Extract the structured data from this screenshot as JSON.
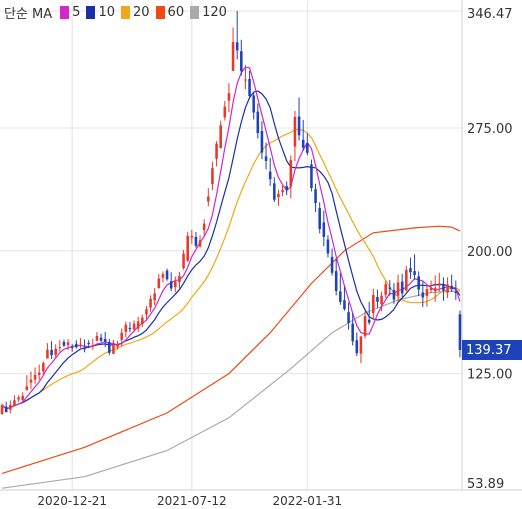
{
  "legend": {
    "prefix": "단순 MA",
    "items": [
      {
        "label": "5",
        "color": "#d426c9"
      },
      {
        "label": "10",
        "color": "#1a2fa8"
      },
      {
        "label": "20",
        "color": "#f0a81a"
      },
      {
        "label": "60",
        "color": "#f04a13"
      },
      {
        "label": "120",
        "color": "#aaaaaa"
      }
    ]
  },
  "colors": {
    "up": "#e8382a",
    "down": "#1e43b8",
    "last_price_tag": "#1e43b8",
    "grid": "#e4e4e4"
  },
  "last_price": {
    "value": "139.37"
  },
  "chart_data": {
    "type": "candlestick",
    "yscale": "linear",
    "ylim": [
      53.89,
      346.47
    ],
    "y_ticks": [
      {
        "label": "346.47",
        "value": 346.47
      },
      {
        "label": "275.00",
        "value": 275.0
      },
      {
        "label": "200.00",
        "value": 200.0
      },
      {
        "label": "125.00",
        "value": 125.0
      },
      {
        "label": "53.89",
        "value": 53.89
      }
    ],
    "x_ticks": [
      {
        "label": "2020-12-21",
        "index": 17
      },
      {
        "label": "2021-07-12",
        "index": 46
      },
      {
        "label": "2022-01-31",
        "index": 74
      }
    ],
    "grid": true,
    "n_periods": 112,
    "candles": [
      [
        100.2,
        106.8,
        99.9,
        105.7
      ],
      [
        104.8,
        107.8,
        101.4,
        101.4
      ],
      [
        103.0,
        108.6,
        100.7,
        105.8
      ],
      [
        105.5,
        111.7,
        105.0,
        108.7
      ],
      [
        109.2,
        111.8,
        107.6,
        110.5
      ],
      [
        108.9,
        113.6,
        107.3,
        111.4
      ],
      [
        114.8,
        124.0,
        114.8,
        117.2
      ],
      [
        119.5,
        126.3,
        115.5,
        121.3
      ],
      [
        121.4,
        128.7,
        118.7,
        124.1
      ],
      [
        124.2,
        130.5,
        121.1,
        125.6
      ],
      [
        126.3,
        132.4,
        124.0,
        131.5
      ],
      [
        134.2,
        143.6,
        134.2,
        139.5
      ],
      [
        139.5,
        144.8,
        133.9,
        136.2
      ],
      [
        136.4,
        142.9,
        134.0,
        140.2
      ],
      [
        140.6,
        145.4,
        138.4,
        141.2
      ],
      [
        144.3,
        145.7,
        141.4,
        142.0
      ],
      [
        142.4,
        146.2,
        139.4,
        144.1
      ],
      [
        141.2,
        143.0,
        138.3,
        140.8
      ],
      [
        143.2,
        145.4,
        140.3,
        141.1
      ],
      [
        142.5,
        146.7,
        140.7,
        142.7
      ],
      [
        140.4,
        145.8,
        138.0,
        139.8
      ],
      [
        143.7,
        145.4,
        140.5,
        143.1
      ],
      [
        141.4,
        146.3,
        139.5,
        142.2
      ],
      [
        145.1,
        150.4,
        144.6,
        148.0
      ],
      [
        147.0,
        149.4,
        144.4,
        145.0
      ],
      [
        146.2,
        150.4,
        141.2,
        144.3
      ],
      [
        144.3,
        146.1,
        136.2,
        137.7
      ],
      [
        137.1,
        145.6,
        136.9,
        142.5
      ],
      [
        141.3,
        145.1,
        139.7,
        142.6
      ],
      [
        145.6,
        152.5,
        141.8,
        149.9
      ],
      [
        150.5,
        156.7,
        147.2,
        154.8
      ],
      [
        152.9,
        156.5,
        150.3,
        152.1
      ],
      [
        152.0,
        157.5,
        150.2,
        155.5
      ],
      [
        152.5,
        159.6,
        150.3,
        156.9
      ],
      [
        155.2,
        161.0,
        153.3,
        159.2
      ],
      [
        161.1,
        166.3,
        157.7,
        164.3
      ],
      [
        165.3,
        172.8,
        162.7,
        170.7
      ],
      [
        169.8,
        177.3,
        166.7,
        174.0
      ],
      [
        177.3,
        185.8,
        176.8,
        183.0
      ],
      [
        183.6,
        187.4,
        180.7,
        185.7
      ],
      [
        187.9,
        189.1,
        181.7,
        182.6
      ],
      [
        181.4,
        186.9,
        175.4,
        177.0
      ],
      [
        177.8,
        184.2,
        174.7,
        181.2
      ],
      [
        180.9,
        187.1,
        176.8,
        184.6
      ],
      [
        189.4,
        200.6,
        188.4,
        198.2
      ],
      [
        193.9,
        211.6,
        193.3,
        209.0
      ],
      [
        208.1,
        212.8,
        204.1,
        209.0
      ],
      [
        208.5,
        211.5,
        201.9,
        203.0
      ],
      [
        202.6,
        209.5,
        201.9,
        206.4
      ],
      [
        212.6,
        219.3,
        209.3,
        216.6
      ],
      [
        230.2,
        238.3,
        227.1,
        233.1
      ],
      [
        240.7,
        254.4,
        237.1,
        250.5
      ],
      [
        256.2,
        267.0,
        251.5,
        265.5
      ],
      [
        262.8,
        279.5,
        262.5,
        276.6
      ],
      [
        281.5,
        291.5,
        279.6,
        288.0
      ],
      [
        291.7,
        302.4,
        284.7,
        296.3
      ],
      [
        309.9,
        336.4,
        309.8,
        327.5
      ],
      [
        327.3,
        346.5,
        316.9,
        322.4
      ],
      [
        321.9,
        328.9,
        307.0,
        309.7
      ],
      [
        304.2,
        313.5,
        298.8,
        304.6
      ],
      [
        305.0,
        309.9,
        292.7,
        294.5
      ],
      [
        294.9,
        297.1,
        280.2,
        284.5
      ],
      [
        285.0,
        289.9,
        268.6,
        271.9
      ],
      [
        273.2,
        279.2,
        256.0,
        260.0
      ],
      [
        257.7,
        266.0,
        249.7,
        254.9
      ],
      [
        248.4,
        256.8,
        239.6,
        243.7
      ],
      [
        241.2,
        244.9,
        229.9,
        231.2
      ],
      [
        232.8,
        237.4,
        227.5,
        234.8
      ],
      [
        235.8,
        240.9,
        233.3,
        237.1
      ],
      [
        239.5,
        242.3,
        234.0,
        237.2
      ],
      [
        239.3,
        258.2,
        232.0,
        255.4
      ],
      [
        263.7,
        285.4,
        254.7,
        281.8
      ],
      [
        282.0,
        293.6,
        267.3,
        270.5
      ],
      [
        267.8,
        279.9,
        261.0,
        263.0
      ],
      [
        265.7,
        271.7,
        258.3,
        259.8
      ],
      [
        252.7,
        255.7,
        236.3,
        238.3
      ],
      [
        237.6,
        241.0,
        223.6,
        229.1
      ],
      [
        226.1,
        229.6,
        210.7,
        213.3
      ],
      [
        217.3,
        224.6,
        202.8,
        208.5
      ],
      [
        206.9,
        209.5,
        196.0,
        198.4
      ],
      [
        196.3,
        201.4,
        184.9,
        186.6
      ],
      [
        187.6,
        195.3,
        172.8,
        175.4
      ],
      [
        175.2,
        186.4,
        167.1,
        168.8
      ],
      [
        169.8,
        178.1,
        163.4,
        164.4
      ],
      [
        162.5,
        168.4,
        151.9,
        156.0
      ],
      [
        155.5,
        162.1,
        142.2,
        144.7
      ],
      [
        145.4,
        150.1,
        135.7,
        137.4
      ],
      [
        137.2,
        148.0,
        131.3,
        147.6
      ],
      [
        147.9,
        163.1,
        146.4,
        160.1
      ],
      [
        157.9,
        168.8,
        154.8,
        156.1
      ],
      [
        161.9,
        176.9,
        158.1,
        173.0
      ],
      [
        171.8,
        176.3,
        165.2,
        168.9
      ],
      [
        167.5,
        175.0,
        163.1,
        172.6
      ],
      [
        173.2,
        181.7,
        171.2,
        179.6
      ],
      [
        177.6,
        182.1,
        172.6,
        176.5
      ],
      [
        176.1,
        180.2,
        167.6,
        170.2
      ],
      [
        172.5,
        185.4,
        169.1,
        180.7
      ],
      [
        181.2,
        185.9,
        171.6,
        174.0
      ],
      [
        175.8,
        190.8,
        175.1,
        188.3
      ],
      [
        189.4,
        195.8,
        182.9,
        186.9
      ],
      [
        187.6,
        197.8,
        182.3,
        185.2
      ],
      [
        184.4,
        187.4,
        172.3,
        176.3
      ],
      [
        174.6,
        181.0,
        165.6,
        171.5
      ],
      [
        172.3,
        179.2,
        165.9,
        176.6
      ],
      [
        176.0,
        181.8,
        174.2,
        177.3
      ],
      [
        175.4,
        185.0,
        168.9,
        177.2
      ],
      [
        178.7,
        186.6,
        175.1,
        180.1
      ],
      [
        179.4,
        183.7,
        169.5,
        175.6
      ],
      [
        174.4,
        183.7,
        171.2,
        179.4
      ],
      [
        178.6,
        185.4,
        174.8,
        176.5
      ],
      [
        175.1,
        181.8,
        170.0,
        174.2
      ],
      [
        161.2,
        163.5,
        135.0,
        139.4
      ]
    ],
    "moving_averages": [
      {
        "name": "5",
        "period": 5
      },
      {
        "name": "10",
        "period": 10
      },
      {
        "name": "20",
        "period": 20
      },
      {
        "name": "60",
        "period": 60,
        "values": [
          [
            0,
            64.0
          ],
          [
            20,
            80.0
          ],
          [
            40,
            101.0
          ],
          [
            55,
            125.0
          ],
          [
            65,
            150.0
          ],
          [
            75,
            180.0
          ],
          [
            83,
            200.0
          ],
          [
            90,
            211.0
          ],
          [
            100,
            214.0
          ],
          [
            106,
            215.0
          ],
          [
            109,
            214.5
          ],
          [
            111,
            212.0
          ]
        ]
      },
      {
        "name": "120",
        "period": 120,
        "values": [
          [
            0,
            55.0
          ],
          [
            20,
            62.0
          ],
          [
            40,
            78.0
          ],
          [
            55,
            98.0
          ],
          [
            70,
            128.0
          ],
          [
            80,
            150.0
          ],
          [
            88,
            162.0
          ],
          [
            96,
            170.0
          ],
          [
            104,
            174.5
          ],
          [
            111,
            175.5
          ]
        ]
      }
    ]
  }
}
